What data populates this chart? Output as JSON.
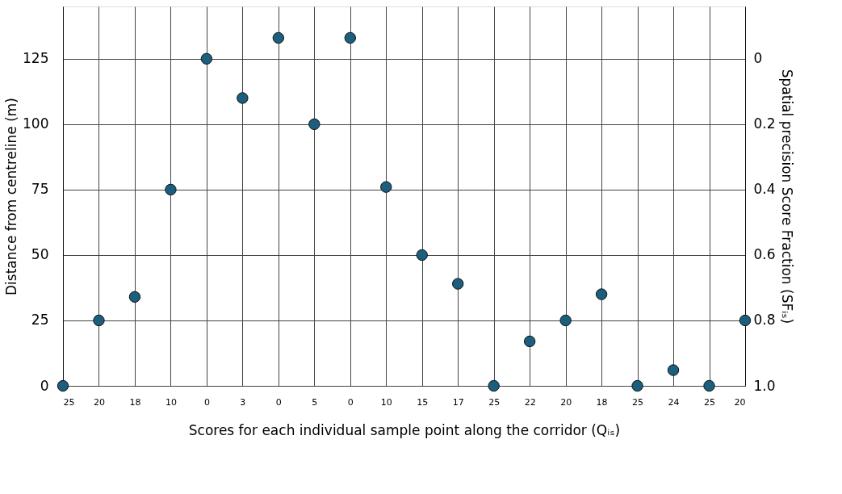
{
  "chart_data": {
    "type": "scatter",
    "xlabel": "Scores for each individual sample point along the corridor (Qᵢₛ)",
    "ylabel": "Distance from centreline (m)",
    "y2label": "Spatial precision Score Fraction (SFᵢₛ)",
    "categories": [
      "25",
      "20",
      "18",
      "10",
      "0",
      "3",
      "0",
      "5",
      "0",
      "10",
      "15",
      "17",
      "25",
      "22",
      "20",
      "18",
      "25",
      "24",
      "25",
      "20"
    ],
    "series": [
      {
        "color": "#1b5e7e",
        "values": [
          0,
          25,
          34,
          75,
          125,
          110,
          133,
          100,
          133,
          76,
          50,
          39,
          0,
          17,
          25,
          35,
          0,
          6,
          0,
          25
        ]
      }
    ],
    "ylim": [
      0,
      145
    ],
    "yticks": [
      0,
      25,
      50,
      75,
      100,
      125
    ],
    "y2lim": [
      1.0,
      -0.16
    ],
    "y2ticks": [
      {
        "value": 0,
        "label": "0"
      },
      0.2,
      0.4,
      0.6,
      0.8,
      {
        "value": 1.0,
        "label": "1.0"
      }
    ],
    "grid": true,
    "marker": "circle"
  }
}
